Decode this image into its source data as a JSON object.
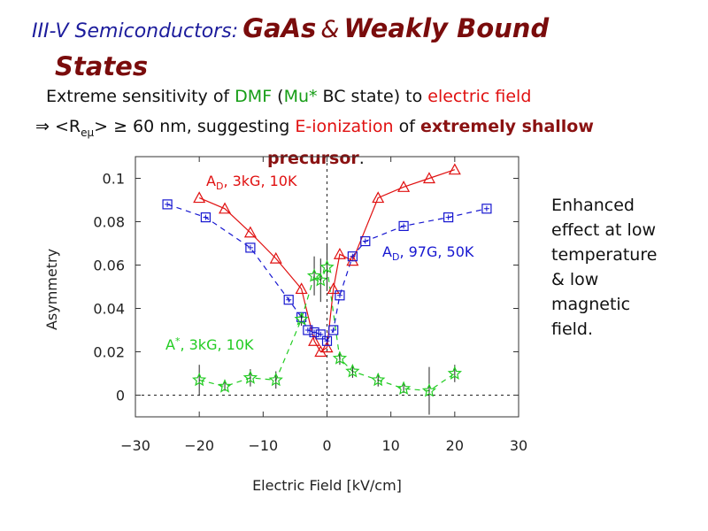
{
  "title": {
    "prefix": "III-V Semiconductors:",
    "gaas": "GaAs",
    "amp": "&",
    "rest": "Weakly Bound",
    "line2": "States"
  },
  "subtitle": {
    "p1": "Extreme sensitivity of ",
    "dmf": "DMF",
    "p2": " (",
    "mu": "Mu*",
    "p3": " BC state) to ",
    "ef": "electric field"
  },
  "bullet": {
    "arrow": "⇒",
    "r_open": " <R",
    "r_sub": "eμ",
    "r_close": "> ≥ 60 nm, suggesting ",
    "eion": "E-ionization",
    "of": " of ",
    "shallow": "extremely shallow",
    "precursor": "precursor",
    "period": "."
  },
  "note": [
    "Enhanced",
    "effect at low",
    "temperature",
    "& low",
    "magnetic",
    "field."
  ],
  "colors": {
    "red": "#e01010",
    "blue": "#1616d0",
    "green": "#22cc22",
    "darkred": "#8b1212"
  },
  "chart_data": {
    "type": "scatter",
    "xlabel": "Electric Field [kV/cm]",
    "ylabel": "Asymmetry",
    "xlim": [
      -30,
      30
    ],
    "ylim": [
      -0.01,
      0.11
    ],
    "xticks": [
      -30,
      -20,
      -10,
      0,
      10,
      20,
      30
    ],
    "xtick_labels": [
      "−30",
      "−20",
      "−10",
      "0",
      "10",
      "20",
      "30"
    ],
    "yticks": [
      0,
      0.02,
      0.04,
      0.06,
      0.08,
      0.1
    ],
    "ytick_labels": [
      "0",
      "0.02",
      "0.04",
      "0.06",
      "0.08",
      "0.1"
    ],
    "series": [
      {
        "name": "AD, 3kG, 10K",
        "label_main": "A",
        "label_sub": "D",
        "label_rest": ", 3kG, 10K",
        "marker": "triangle",
        "color": "#e01010",
        "x": [
          -20,
          -16,
          -12,
          -8,
          -4,
          -2,
          -1,
          0,
          1,
          2,
          4,
          8,
          12,
          16,
          20
        ],
        "y": [
          0.091,
          0.086,
          0.075,
          0.063,
          0.049,
          0.025,
          0.02,
          0.022,
          0.049,
          0.065,
          0.062,
          0.091,
          0.096,
          0.1,
          0.104
        ]
      },
      {
        "name": "AD, 97G, 50K",
        "label_main": "A",
        "label_sub": "D",
        "label_rest": ", 97G, 50K",
        "marker": "square",
        "color": "#1616d0",
        "x": [
          -25,
          -19,
          -12,
          -6,
          -4,
          -3,
          -2,
          -1,
          0,
          1,
          2,
          4,
          6,
          12,
          19,
          25
        ],
        "y": [
          0.088,
          0.082,
          0.068,
          0.044,
          0.036,
          0.03,
          0.029,
          0.028,
          0.025,
          0.03,
          0.046,
          0.064,
          0.071,
          0.078,
          0.082,
          0.086
        ]
      },
      {
        "name": "A*, 3kG, 10K",
        "label_main": "A",
        "label_sub": "*",
        "label_rest": ", 3kG, 10K",
        "marker": "star",
        "color": "#22cc22",
        "x": [
          -20,
          -16,
          -12,
          -8,
          -4,
          -2,
          -1,
          0,
          2,
          4,
          8,
          12,
          16,
          20
        ],
        "y": [
          0.007,
          0.004,
          0.008,
          0.007,
          0.035,
          0.055,
          0.053,
          0.059,
          0.017,
          0.011,
          0.007,
          0.003,
          0.002,
          0.01
        ],
        "err": [
          0.007,
          0.002,
          0.004,
          0.004,
          0.003,
          0.009,
          0.01,
          0.011,
          0.003,
          0.003,
          0.003,
          0.002,
          0.011,
          0.004
        ]
      }
    ],
    "grid": false
  }
}
